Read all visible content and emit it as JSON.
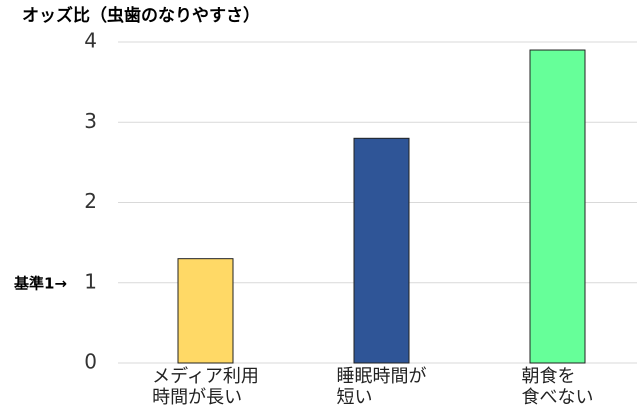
{
  "chart_data": {
    "type": "bar",
    "title": "オッズ比（虫歯のなりやすさ）",
    "annotation": "基準1→",
    "categories": [
      "メディア利用\n時間が長い",
      "睡眠時間が\n短い",
      "朝食を\n食べない"
    ],
    "values": [
      1.3,
      2.8,
      3.9
    ],
    "colors": [
      "#ffd966",
      "#2f5597",
      "#66ff99"
    ],
    "ylim": [
      0,
      4
    ],
    "yticks": [
      0,
      1,
      2,
      3,
      4
    ],
    "grid": true
  }
}
